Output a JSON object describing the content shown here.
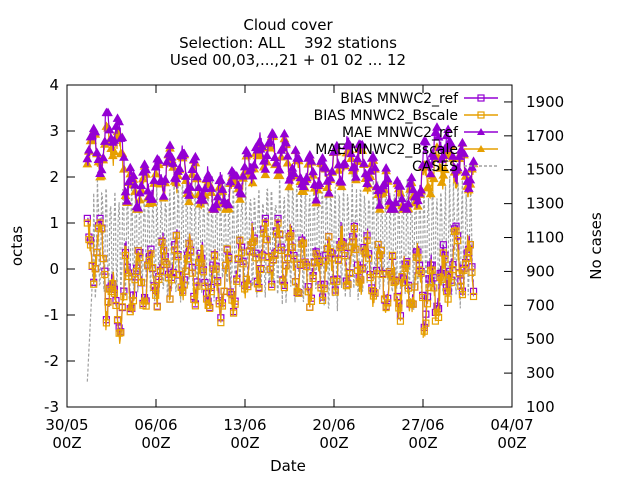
{
  "chart_data": {
    "type": "line",
    "title_lines": [
      "Cloud cover",
      "Selection: ALL    392 stations",
      "Used 00,03,...,21 + 01 02 ... 12"
    ],
    "xlabel": "Date",
    "ylabel": "octas",
    "y2label": "No cases",
    "ylim": [
      -3,
      4
    ],
    "y2lim": [
      100,
      2000
    ],
    "yticks": [
      "-3",
      "-2",
      "-1",
      "0",
      "1",
      "2",
      "3",
      "4"
    ],
    "y2ticks": [
      "100",
      "300",
      "500",
      "700",
      "900",
      "1100",
      "1300",
      "1500",
      "1700",
      "1900"
    ],
    "xticks": [
      {
        "top": "30/05",
        "bottom": "00Z"
      },
      {
        "top": "06/06",
        "bottom": "00Z"
      },
      {
        "top": "13/06",
        "bottom": "00Z"
      },
      {
        "top": "20/06",
        "bottom": "00Z"
      },
      {
        "top": "27/06",
        "bottom": "00Z"
      },
      {
        "top": "04/07",
        "bottom": "00Z"
      }
    ],
    "xrange_days": [
      0,
      35
    ],
    "data_range_days": [
      1.6,
      32.0
    ],
    "legend_position": "top-right",
    "series": [
      {
        "name": "BIAS MNWC2_ref",
        "color": "#9400d3",
        "marker": "square",
        "axis": "y1",
        "approx": "oscillates roughly between -1.8 and 1.1 octas around 0"
      },
      {
        "name": "BIAS MNWC2_Bscale",
        "color": "#e69f00",
        "marker": "square",
        "axis": "y1",
        "approx": "oscillates roughly between -2.0 and 1.0 octas around 0"
      },
      {
        "name": "MAE MNWC2_ref",
        "color": "#9400d3",
        "marker": "triangle",
        "axis": "y1",
        "approx": "oscillates roughly between 1.3 and 3.4 octas"
      },
      {
        "name": "MAE MNWC2_Bscale",
        "color": "#e69f00",
        "marker": "triangle",
        "axis": "y1",
        "approx": "oscillates roughly between 1.3 and 3.1 octas"
      },
      {
        "name": "CASES",
        "color": "#a0a0a0",
        "marker": "none",
        "dash": "dashed",
        "axis": "y2",
        "approx": "oscillates roughly between 650 and 1500 cases, starting near 250"
      }
    ]
  }
}
